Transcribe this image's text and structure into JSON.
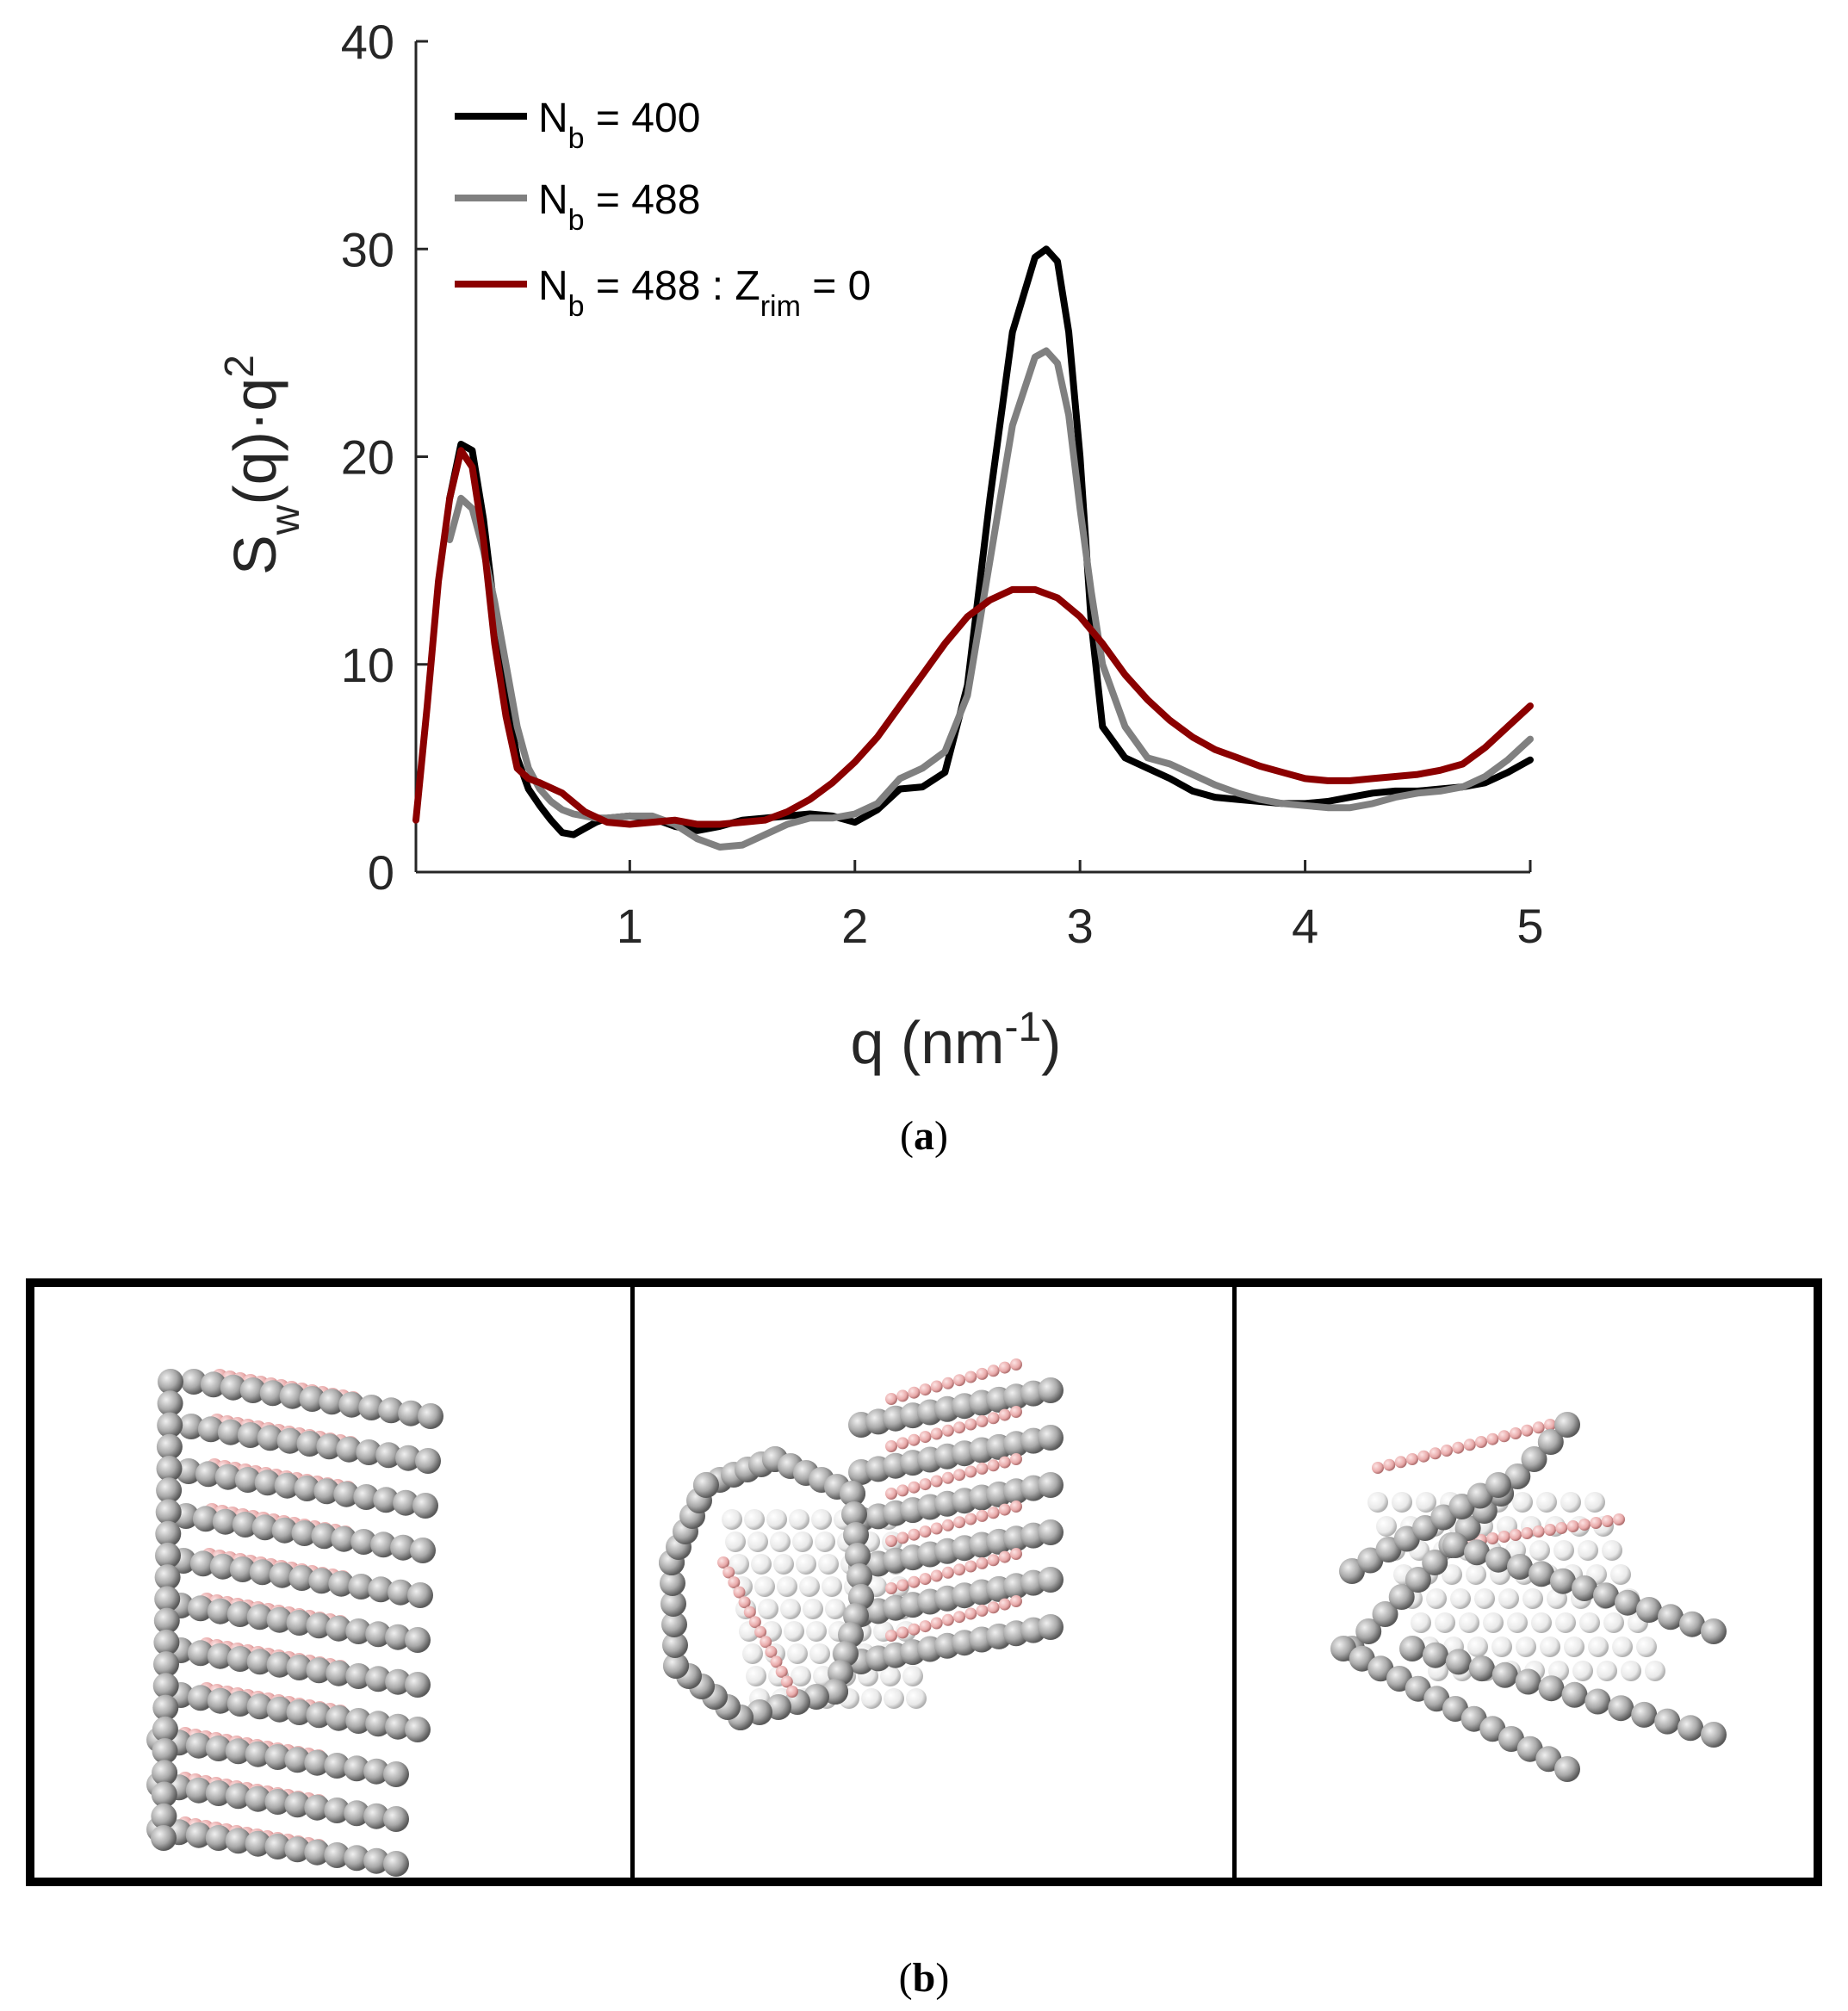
{
  "chart_data": {
    "type": "line",
    "xlabel": "q (nm",
    "xlabel_sup": "-1",
    "xlabel_close": ")",
    "ylabel_main": "S",
    "ylabel_sub": "w",
    "ylabel_mid": "(q)·q",
    "ylabel_sup": "2",
    "xlim": [
      0.05,
      5
    ],
    "ylim": [
      0,
      40
    ],
    "xticks": [
      1,
      2,
      3,
      4,
      5
    ],
    "yticks": [
      0,
      10,
      20,
      30,
      40
    ],
    "grid": false,
    "legend_position": "top-left",
    "series": [
      {
        "name_main": "N",
        "name_sub": "b",
        "name_rest": " = 400",
        "color": "#000000",
        "x": [
          0.2,
          0.25,
          0.3,
          0.35,
          0.4,
          0.45,
          0.5,
          0.55,
          0.6,
          0.65,
          0.7,
          0.75,
          0.8,
          0.85,
          0.9,
          1.0,
          1.1,
          1.2,
          1.3,
          1.4,
          1.5,
          1.6,
          1.7,
          1.8,
          1.9,
          2.0,
          2.1,
          2.2,
          2.3,
          2.4,
          2.5,
          2.6,
          2.7,
          2.8,
          2.85,
          2.9,
          2.95,
          3.0,
          3.05,
          3.1,
          3.2,
          3.3,
          3.4,
          3.5,
          3.6,
          3.7,
          3.8,
          3.9,
          4.0,
          4.1,
          4.2,
          4.3,
          4.4,
          4.5,
          4.6,
          4.7,
          4.8,
          4.9,
          5.0
        ],
        "y": [
          18.0,
          20.6,
          20.3,
          17.0,
          12.5,
          8.5,
          5.5,
          4.0,
          3.2,
          2.5,
          1.9,
          1.8,
          2.1,
          2.4,
          2.6,
          2.7,
          2.6,
          2.2,
          2.0,
          2.2,
          2.5,
          2.6,
          2.7,
          2.8,
          2.7,
          2.4,
          3.0,
          4.0,
          4.1,
          4.8,
          9.0,
          18.0,
          26.0,
          29.6,
          30.0,
          29.4,
          26.0,
          20.0,
          12.0,
          7.0,
          5.5,
          5.0,
          4.5,
          3.9,
          3.6,
          3.5,
          3.4,
          3.3,
          3.3,
          3.4,
          3.6,
          3.8,
          3.9,
          3.9,
          4.0,
          4.1,
          4.3,
          4.8,
          5.4
        ]
      },
      {
        "name_main": "N",
        "name_sub": "b",
        "name_rest": " = 488",
        "color": "#808080",
        "x": [
          0.2,
          0.25,
          0.3,
          0.35,
          0.4,
          0.45,
          0.5,
          0.55,
          0.6,
          0.65,
          0.7,
          0.75,
          0.8,
          0.85,
          0.9,
          1.0,
          1.1,
          1.2,
          1.3,
          1.4,
          1.5,
          1.6,
          1.7,
          1.8,
          1.9,
          2.0,
          2.1,
          2.2,
          2.3,
          2.4,
          2.5,
          2.6,
          2.7,
          2.8,
          2.85,
          2.9,
          2.95,
          3.0,
          3.05,
          3.1,
          3.2,
          3.3,
          3.4,
          3.5,
          3.6,
          3.7,
          3.8,
          3.9,
          4.0,
          4.1,
          4.2,
          4.3,
          4.4,
          4.5,
          4.6,
          4.7,
          4.8,
          4.9,
          5.0
        ],
        "y": [
          16.0,
          18.0,
          17.5,
          15.5,
          13.0,
          10.0,
          7.0,
          5.0,
          4.0,
          3.4,
          3.0,
          2.8,
          2.7,
          2.6,
          2.6,
          2.7,
          2.7,
          2.3,
          1.6,
          1.2,
          1.3,
          1.8,
          2.3,
          2.6,
          2.6,
          2.8,
          3.3,
          4.5,
          5.0,
          5.8,
          8.5,
          15.0,
          21.5,
          24.8,
          25.1,
          24.5,
          22.0,
          17.5,
          13.5,
          10.0,
          7.0,
          5.5,
          5.2,
          4.7,
          4.2,
          3.8,
          3.5,
          3.3,
          3.2,
          3.1,
          3.1,
          3.3,
          3.6,
          3.8,
          3.9,
          4.1,
          4.6,
          5.4,
          6.4
        ]
      },
      {
        "name_main": "N",
        "name_sub": "b",
        "name_rest": " = 488 : Z",
        "name_sub2": "rim",
        "name_rest2": " = 0",
        "color": "#8b0000",
        "x": [
          0.05,
          0.1,
          0.15,
          0.2,
          0.25,
          0.3,
          0.35,
          0.4,
          0.45,
          0.5,
          0.55,
          0.6,
          0.7,
          0.8,
          0.9,
          1.0,
          1.1,
          1.2,
          1.3,
          1.4,
          1.5,
          1.6,
          1.7,
          1.8,
          1.9,
          2.0,
          2.1,
          2.2,
          2.3,
          2.4,
          2.5,
          2.6,
          2.7,
          2.8,
          2.9,
          3.0,
          3.1,
          3.2,
          3.3,
          3.4,
          3.5,
          3.6,
          3.7,
          3.8,
          3.9,
          4.0,
          4.1,
          4.2,
          4.3,
          4.4,
          4.5,
          4.6,
          4.7,
          4.8,
          4.9,
          5.0
        ],
        "y": [
          2.5,
          8.0,
          14.0,
          18.0,
          20.3,
          19.5,
          16.0,
          11.0,
          7.5,
          5.0,
          4.5,
          4.3,
          3.8,
          2.9,
          2.4,
          2.3,
          2.4,
          2.5,
          2.3,
          2.3,
          2.4,
          2.5,
          2.9,
          3.5,
          4.3,
          5.3,
          6.5,
          8.0,
          9.5,
          11.0,
          12.3,
          13.1,
          13.6,
          13.6,
          13.2,
          12.3,
          11.0,
          9.5,
          8.3,
          7.3,
          6.5,
          5.9,
          5.5,
          5.1,
          4.8,
          4.5,
          4.4,
          4.4,
          4.5,
          4.6,
          4.7,
          4.9,
          5.2,
          6.0,
          7.0,
          8.0
        ]
      }
    ]
  },
  "captions": {
    "a": "a",
    "b": "b"
  },
  "bead_colors": {
    "gray": "#a9a9a9",
    "white": "#f2f2f2",
    "pink": "#e8a9a9"
  }
}
